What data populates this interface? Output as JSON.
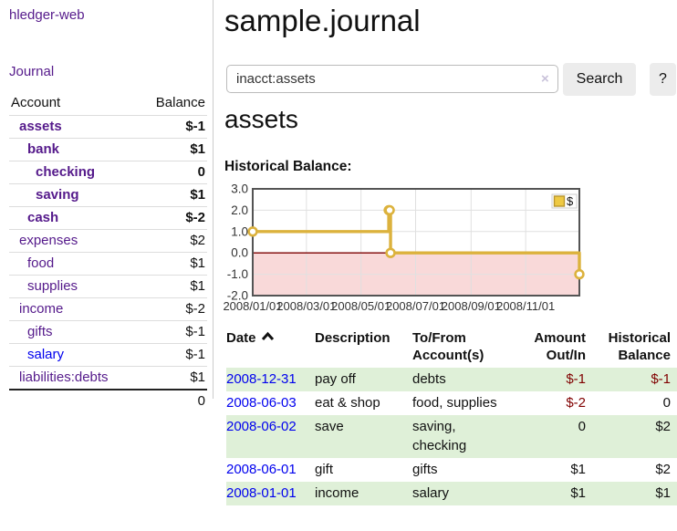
{
  "app": {
    "title": "hledger-web"
  },
  "sidebar": {
    "nav_journal": "Journal",
    "accounts_table": {
      "header_account": "Account",
      "header_balance": "Balance",
      "rows": [
        {
          "label": "assets",
          "level": 1,
          "bold": true,
          "balance": "$-1",
          "balance_style": "neg-strong"
        },
        {
          "label": "bank",
          "level": 2,
          "bold": true,
          "balance": "$1",
          "balance_style": ""
        },
        {
          "label": "checking",
          "level": 3,
          "bold": true,
          "balance": "0",
          "balance_style": ""
        },
        {
          "label": "saving",
          "level": 3,
          "bold": true,
          "balance": "$1",
          "balance_style": ""
        },
        {
          "label": "cash",
          "level": 2,
          "bold": true,
          "balance": "$-2",
          "balance_style": "neg-strong"
        },
        {
          "label": "expenses",
          "level": 1,
          "bold": false,
          "balance": "$2",
          "balance_style": ""
        },
        {
          "label": "food",
          "level": 2,
          "bold": false,
          "balance": "$1",
          "balance_style": ""
        },
        {
          "label": "supplies",
          "level": 2,
          "bold": false,
          "balance": "$1",
          "balance_style": ""
        },
        {
          "label": "income",
          "level": 1,
          "bold": false,
          "balance": "$-2",
          "balance_style": "neg-soft"
        },
        {
          "label": "gifts",
          "level": 2,
          "bold": false,
          "balance": "$-1",
          "balance_style": "neg-soft"
        },
        {
          "label": "salary",
          "level": 2,
          "bold": false,
          "balance": "$-1",
          "balance_style": "neg-soft",
          "link": "blue"
        },
        {
          "label": "liabilities:debts",
          "level": 1,
          "bold": false,
          "balance": "$1",
          "balance_style": ""
        }
      ],
      "total": "0"
    }
  },
  "main": {
    "title": "sample.journal",
    "search": {
      "value": "inacct:assets",
      "clear_icon": "×",
      "button": "Search",
      "help_button": "?"
    },
    "account_heading": "assets",
    "chart_title": "Historical Balance:"
  },
  "chart_data": {
    "type": "line",
    "step": true,
    "title": "Historical Balance:",
    "legend": {
      "label": "$",
      "position": "top-right"
    },
    "x_range": [
      "2008-01-01",
      "2008-12-31"
    ],
    "ylim": [
      -2,
      3
    ],
    "yticks": [
      3.0,
      2.0,
      1.0,
      0.0,
      -1.0,
      -2.0
    ],
    "xticks": [
      "2008/01/01",
      "2008/03/01",
      "2008/05/01",
      "2008/07/01",
      "2008/09/01",
      "2008/11/01"
    ],
    "grid": true,
    "series": [
      {
        "name": "$",
        "points": [
          [
            "2008-01-01",
            1
          ],
          [
            "2008-06-01",
            2
          ],
          [
            "2008-06-02",
            2
          ],
          [
            "2008-06-03",
            0
          ],
          [
            "2008-12-31",
            -1
          ]
        ]
      }
    ],
    "colors": {
      "line": "#dcb23d",
      "marker_fill": "#ffffff",
      "legend_fill": "#eec943",
      "legend_border": "#b9962e",
      "negative_region": "#f9d9d9",
      "zero_line": "#7d0000",
      "plot_border": "#545454",
      "gridline": "#e0e0e0"
    }
  },
  "register": {
    "columns": [
      {
        "lines": [
          "Date"
        ],
        "sort": "asc",
        "align": "left"
      },
      {
        "lines": [
          "Description"
        ],
        "align": "left"
      },
      {
        "lines": [
          "To/From",
          "Account(s)"
        ],
        "align": "left"
      },
      {
        "lines": [
          "Amount",
          "Out/In"
        ],
        "align": "right"
      },
      {
        "lines": [
          "Historical",
          "Balance"
        ],
        "align": "right"
      }
    ],
    "rows": [
      {
        "date": "2008-12-31",
        "description": "pay off",
        "accounts": "debts",
        "amount": "$-1",
        "amount_neg": true,
        "balance": "$-1",
        "balance_neg": true,
        "stripe": true
      },
      {
        "date": "2008-06-03",
        "description": "eat & shop",
        "accounts": "food, supplies",
        "amount": "$-2",
        "amount_neg": true,
        "balance": "0",
        "balance_neg": false,
        "stripe": false
      },
      {
        "date": "2008-06-02",
        "description": "save",
        "accounts": "saving, checking",
        "amount": "0",
        "amount_neg": false,
        "balance": "$2",
        "balance_neg": false,
        "stripe": true
      },
      {
        "date": "2008-06-01",
        "description": "gift",
        "accounts": "gifts",
        "amount": "$1",
        "amount_neg": false,
        "balance": "$2",
        "balance_neg": false,
        "stripe": false
      },
      {
        "date": "2008-01-01",
        "description": "income",
        "accounts": "salary",
        "amount": "$1",
        "amount_neg": false,
        "balance": "$1",
        "balance_neg": false,
        "stripe": true
      }
    ]
  },
  "colors": {
    "link_visited": "#551a8b",
    "link_unvisited": "#0000ee",
    "negative_strong": "#800000",
    "negative_soft": "#b96a6a",
    "row_stripe": "#dff0d8",
    "button_bg": "#ececec"
  }
}
